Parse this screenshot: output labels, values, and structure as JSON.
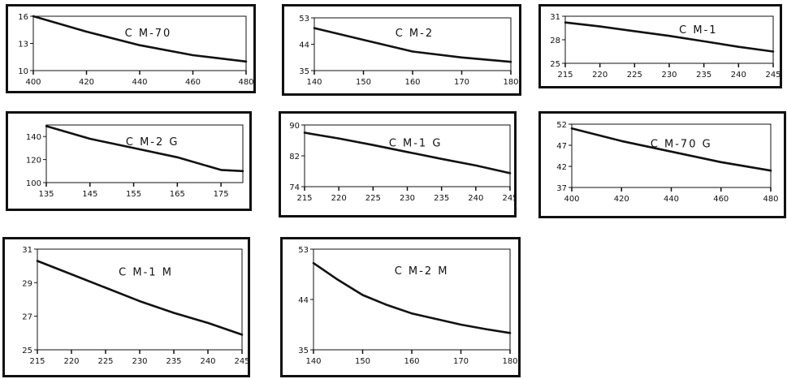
{
  "chart_data": [
    {
      "type": "line",
      "title": "C M-70",
      "x": [
        400,
        420,
        440,
        460,
        480
      ],
      "y": [
        16,
        14.3,
        12.8,
        11.7,
        11.0
      ],
      "xlim": [
        400,
        480
      ],
      "ylim": [
        10,
        16
      ],
      "xticks": [
        "400",
        "420",
        "440",
        "460",
        "480"
      ],
      "yticks": [
        "10",
        "13",
        "16"
      ],
      "color": "#111111"
    },
    {
      "type": "line",
      "title": "C M-2",
      "x": [
        140,
        150,
        160,
        170,
        180
      ],
      "y": [
        49.5,
        45.5,
        41.5,
        39.5,
        38
      ],
      "xlim": [
        140,
        180
      ],
      "ylim": [
        35,
        53
      ],
      "xticks": [
        "140",
        "150",
        "160",
        "170",
        "180"
      ],
      "yticks": [
        "35",
        "44",
        "53"
      ],
      "color": "#111111"
    },
    {
      "type": "line",
      "title": "C M-1",
      "x": [
        215,
        220,
        225,
        230,
        235,
        240,
        245
      ],
      "y": [
        30.2,
        29.7,
        29.1,
        28.5,
        27.8,
        27.1,
        26.5
      ],
      "xlim": [
        215,
        245
      ],
      "ylim": [
        25,
        31
      ],
      "xticks": [
        "215",
        "220",
        "225",
        "230",
        "235",
        "240",
        "245"
      ],
      "yticks": [
        "25",
        "28",
        "31"
      ],
      "color": "#111111"
    },
    {
      "type": "line",
      "title": "C M-2 G",
      "x": [
        135,
        145,
        155,
        165,
        175,
        180
      ],
      "y": [
        149,
        138,
        130,
        122,
        111,
        110
      ],
      "xlim": [
        135,
        180
      ],
      "ylim": [
        100,
        150
      ],
      "xticks": [
        "135",
        "145",
        "155",
        "165",
        "175"
      ],
      "yticks": [
        "100",
        "120",
        "140"
      ],
      "color": "#111111"
    },
    {
      "type": "line",
      "title": "C M-1 G",
      "x": [
        215,
        220,
        225,
        230,
        235,
        240,
        245
      ],
      "y": [
        88,
        86.5,
        84.8,
        83,
        81.2,
        79.5,
        77.5
      ],
      "xlim": [
        215,
        245
      ],
      "ylim": [
        74,
        90
      ],
      "xticks": [
        "215",
        "220",
        "225",
        "230",
        "235",
        "240",
        "245"
      ],
      "yticks": [
        "74",
        "82",
        "90"
      ],
      "color": "#111111"
    },
    {
      "type": "line",
      "title": "C M-70 G",
      "x": [
        400,
        420,
        440,
        460,
        480
      ],
      "y": [
        51,
        48,
        45.5,
        43,
        41
      ],
      "xlim": [
        400,
        480
      ],
      "ylim": [
        37,
        52
      ],
      "xticks": [
        "400",
        "420",
        "440",
        "460",
        "480"
      ],
      "yticks": [
        "37",
        "42",
        "47",
        "52"
      ],
      "color": "#111111"
    },
    {
      "type": "line",
      "title": "C M-1 M",
      "x": [
        215,
        220,
        225,
        230,
        235,
        240,
        245
      ],
      "y": [
        30.3,
        29.5,
        28.7,
        27.9,
        27.2,
        26.6,
        25.9
      ],
      "xlim": [
        215,
        245
      ],
      "ylim": [
        25,
        31
      ],
      "xticks": [
        "215",
        "220",
        "225",
        "230",
        "235",
        "240",
        "245"
      ],
      "yticks": [
        "25",
        "27",
        "29",
        "31"
      ],
      "color": "#111111"
    },
    {
      "type": "line",
      "title": "C M-2 M",
      "x": [
        140,
        145,
        150,
        155,
        160,
        165,
        170,
        175,
        180
      ],
      "y": [
        50.5,
        47.5,
        44.8,
        43,
        41.5,
        40.5,
        39.5,
        38.7,
        38
      ],
      "xlim": [
        140,
        180
      ],
      "ylim": [
        35,
        53
      ],
      "xticks": [
        "140",
        "150",
        "160",
        "170",
        "180"
      ],
      "yticks": [
        "35",
        "44",
        "53"
      ],
      "color": "#111111"
    }
  ]
}
